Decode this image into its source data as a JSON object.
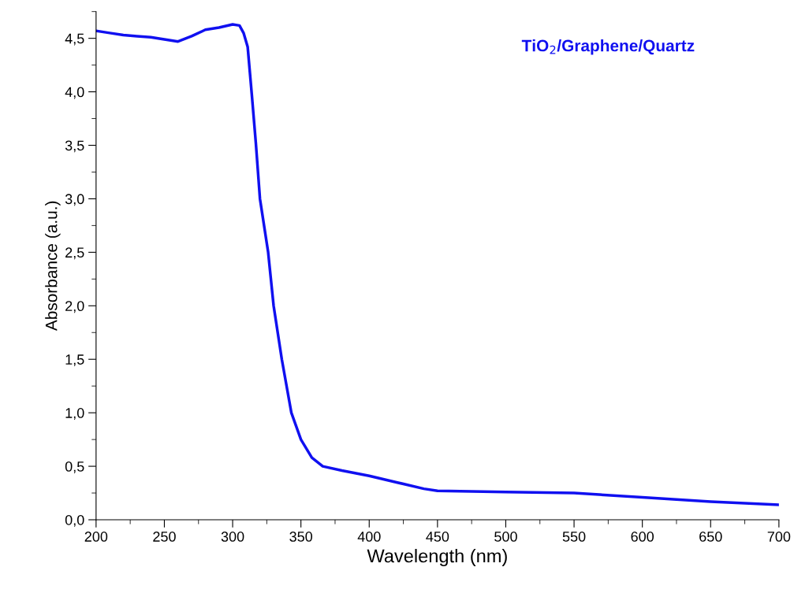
{
  "chart_data": {
    "type": "line",
    "xlabel": "Wavelength (nm)",
    "ylabel": "Absorbance (a.u.)",
    "annotations": [
      "TiO$_{2}$/Graphene/Quartz"
    ],
    "xlim": [
      200,
      700
    ],
    "xticks": [
      200,
      250,
      300,
      350,
      400,
      450,
      500,
      550,
      600,
      650,
      700
    ],
    "ylim": [
      0,
      4.75
    ],
    "yticks": [
      {
        "value": 0,
        "label": "0,0"
      },
      {
        "value": 0.5,
        "label": "0,5"
      },
      {
        "value": 1,
        "label": "1,0"
      },
      {
        "value": 1.5,
        "label": "1,5"
      },
      {
        "value": 2,
        "label": "2,0"
      },
      {
        "value": 2.5,
        "label": "2,5"
      },
      {
        "value": 3,
        "label": "3,0"
      },
      {
        "value": 3.5,
        "label": "3,5"
      },
      {
        "value": 4,
        "label": "4,0"
      },
      {
        "value": 4.5,
        "label": "4,5"
      }
    ],
    "grid": false,
    "legend": false,
    "marker": "none",
    "line_style": "solid",
    "series": [
      {
        "color": "#1010f0",
        "x": [
          200,
          210,
          220,
          230,
          240,
          250,
          260,
          270,
          280,
          290,
          300,
          305,
          308,
          311,
          314,
          317,
          320,
          326,
          330,
          336,
          343,
          350,
          358,
          366,
          380,
          400,
          420,
          440,
          450,
          500,
          550,
          600,
          650,
          700
        ],
        "values": [
          4.57,
          4.55,
          4.53,
          4.52,
          4.51,
          4.49,
          4.47,
          4.52,
          4.58,
          4.6,
          4.63,
          4.62,
          4.55,
          4.42,
          3.98,
          3.52,
          3.0,
          2.5,
          2.0,
          1.5,
          1.0,
          0.75,
          0.58,
          0.5,
          0.46,
          0.41,
          0.35,
          0.29,
          0.27,
          0.26,
          0.25,
          0.21,
          0.17,
          0.14
        ]
      }
    ]
  }
}
